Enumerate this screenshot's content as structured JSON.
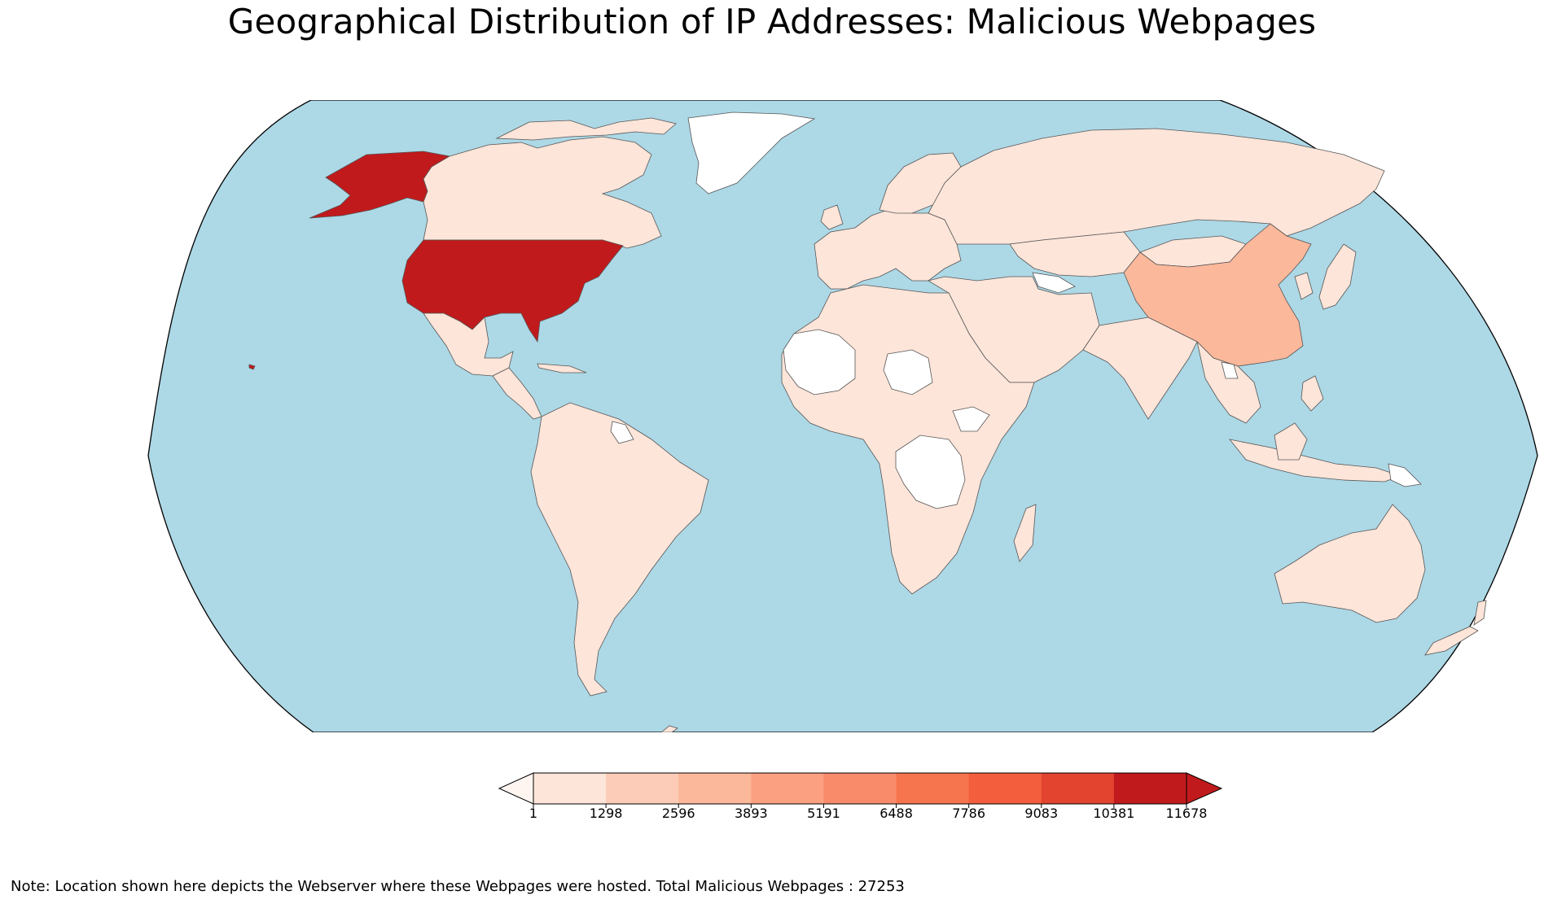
{
  "title": "Geographical Distribution of IP Addresses: Malicious Webpages",
  "note": "Note: Location shown here depicts the Webserver where these Webpages were hosted. Total Malicious Webpages : 27253",
  "map": {
    "projection": "Robinson",
    "ocean_color": "#add8e6",
    "border_color": "#555555",
    "no_data_color": "#ffffff",
    "countries": [
      {
        "name": "United States",
        "bin": 8,
        "color": "#c11a1c"
      },
      {
        "name": "China",
        "bin": 2,
        "color": "#fbb89b"
      },
      {
        "name": "Canada",
        "bin": 0,
        "color": "#fee5d9"
      },
      {
        "name": "Russia",
        "bin": 0,
        "color": "#fee5d9"
      },
      {
        "name": "Brazil",
        "bin": 0,
        "color": "#fee5d9"
      },
      {
        "name": "Australia",
        "bin": 0,
        "color": "#fee5d9"
      },
      {
        "name": "India",
        "bin": 0,
        "color": "#fee5d9"
      },
      {
        "name": "Greenland",
        "bin": null,
        "color": "#ffffff"
      },
      {
        "name": "Democratic Republic of the Congo",
        "bin": null,
        "color": "#ffffff"
      }
    ]
  },
  "colorbar": {
    "ticks": [
      "1",
      "1298",
      "2596",
      "3893",
      "5191",
      "6488",
      "7786",
      "9083",
      "10381",
      "11678"
    ],
    "colors": [
      "#fee5d9",
      "#fcccb8",
      "#fbb89b",
      "#fba081",
      "#f98b6b",
      "#f6754f",
      "#f35e3d",
      "#e24430",
      "#c11a1c"
    ],
    "extend_low_color": "#fff5f0",
    "extend_high_color": "#c11a1c"
  }
}
